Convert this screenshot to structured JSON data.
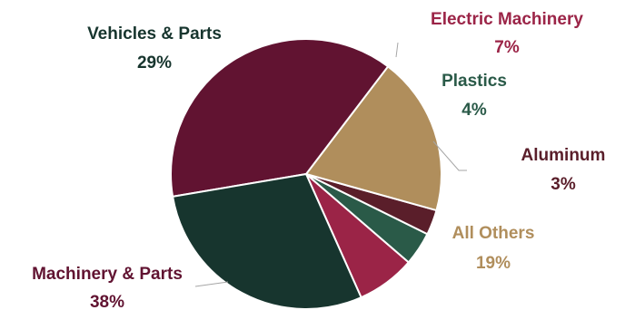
{
  "chart_data": {
    "type": "pie",
    "title": "",
    "slices": [
      {
        "name": "Electric Machinery",
        "value": 7,
        "label": "7%",
        "color": "#9b2447",
        "label_color": "#9b2447"
      },
      {
        "name": "Plastics",
        "value": 4,
        "label": "4%",
        "color": "#2a5a48",
        "label_color": "#2a5a48"
      },
      {
        "name": "Aluminum",
        "value": 3,
        "label": "3%",
        "color": "#5a1e2a",
        "label_color": "#5a1e2a"
      },
      {
        "name": "All Others",
        "value": 19,
        "label": "19%",
        "color": "#b08e5c",
        "label_color": "#b08e5c"
      },
      {
        "name": "Machinery & Parts",
        "value": 38,
        "label": "38%",
        "color": "#611331",
        "label_color": "#611331"
      },
      {
        "name": "Vehicles & Parts",
        "value": 29,
        "label": "29%",
        "color": "#17352e",
        "label_color": "#17352e"
      }
    ],
    "legend": "none"
  }
}
